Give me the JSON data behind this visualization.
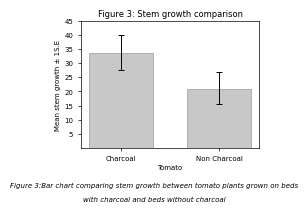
{
  "title": "Figure 3: Stem growth comparison",
  "categories": [
    "Charcoal",
    "Non Charcoal"
  ],
  "values": [
    33.5,
    21.0
  ],
  "errors_up": [
    6.5,
    6.0
  ],
  "errors_down": [
    6.0,
    5.5
  ],
  "bar_color": "#C8C8C8",
  "bar_edgecolor": "#999999",
  "ylabel": "Mean stem growth ± 1S.E",
  "xlabel": "Tomato",
  "ylim": [
    0,
    45
  ],
  "yticks": [
    5,
    10,
    15,
    20,
    25,
    30,
    35,
    40,
    45
  ],
  "title_fontsize": 6,
  "tick_fontsize": 5,
  "label_fontsize": 5,
  "caption_fontsize": 5,
  "bar_width": 0.65,
  "error_capsize": 2,
  "background_color": "#ffffff",
  "caption_line1": "Figure 3:Bar chart comparing stem growth between tomato plants grown on beds",
  "caption_line2": "with charcoal and beds without charcoal"
}
